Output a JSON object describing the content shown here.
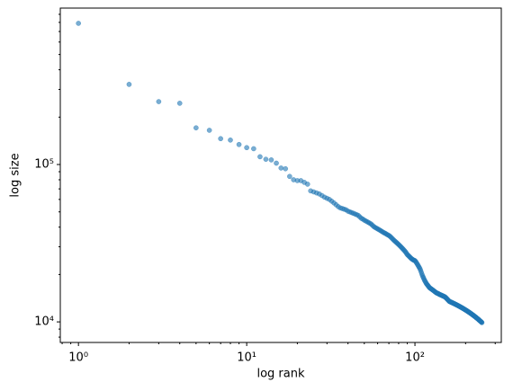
{
  "chart_data": {
    "type": "scatter",
    "xlabel": "log rank",
    "ylabel": "log size",
    "color": "#1f77b4",
    "xscale": "log",
    "yscale": "log",
    "xlim": [
      0.78,
      326
    ],
    "ylim": [
      7400,
      986000
    ],
    "xticks": [
      {
        "value": 1,
        "label": "10⁰"
      },
      {
        "value": 10,
        "label": "10¹"
      },
      {
        "value": 100,
        "label": "10²"
      }
    ],
    "yticks": [
      {
        "value": 10000,
        "label": "10⁴"
      },
      {
        "value": 100000,
        "label": "10⁵"
      }
    ],
    "xminorticks": [
      0.8,
      0.9,
      2,
      3,
      4,
      5,
      6,
      7,
      8,
      9,
      20,
      30,
      40,
      50,
      60,
      70,
      80,
      90,
      200,
      300
    ],
    "yminorticks": [
      8000,
      9000,
      20000,
      30000,
      40000,
      50000,
      60000,
      70000,
      80000,
      90000,
      200000,
      300000,
      400000,
      500000,
      600000,
      700000,
      800000,
      900000
    ],
    "x": [
      1,
      2,
      3,
      4,
      5,
      6,
      7,
      8,
      9,
      10,
      11,
      12,
      13,
      14,
      15,
      16,
      17,
      18,
      19,
      20,
      21,
      22,
      23,
      24,
      25,
      26,
      27,
      28,
      29,
      30,
      31,
      32,
      33,
      34,
      35,
      36,
      37,
      38,
      39,
      40,
      41,
      42,
      43,
      44,
      45,
      46,
      47,
      48,
      49,
      50,
      51,
      52,
      53,
      54,
      55,
      56,
      57,
      58,
      59,
      60,
      61,
      62,
      63,
      64,
      65,
      66,
      67,
      68,
      69,
      70,
      71,
      72,
      73,
      74,
      75,
      76,
      77,
      78,
      79,
      80,
      81,
      82,
      83,
      84,
      85,
      86,
      87,
      88,
      89,
      90,
      91,
      92,
      93,
      94,
      95,
      96,
      97,
      98,
      99,
      100,
      101,
      102,
      103,
      104,
      105,
      106,
      107,
      108,
      109,
      110,
      111,
      112,
      113,
      114,
      115,
      116,
      117,
      118,
      119,
      120,
      121,
      122,
      123,
      124,
      125,
      126,
      127,
      128,
      129,
      130,
      131,
      132,
      133,
      134,
      135,
      136,
      137,
      138,
      139,
      140,
      141,
      142,
      143,
      144,
      145,
      146,
      147,
      148,
      149,
      150,
      151,
      152,
      153,
      154,
      155,
      156,
      157,
      158,
      159,
      160,
      161,
      162,
      163,
      164,
      165,
      166,
      167,
      168,
      169,
      170,
      171,
      172,
      173,
      174,
      175,
      176,
      177,
      178,
      179,
      180,
      181,
      182,
      183,
      184,
      185,
      186,
      187,
      188,
      189,
      190,
      191,
      192,
      193,
      194,
      195,
      196,
      197,
      198,
      199,
      200,
      201,
      202,
      203,
      204,
      205,
      206,
      207,
      208,
      209,
      210,
      211,
      212,
      213,
      214,
      215,
      216,
      217,
      218,
      219,
      220,
      221,
      222,
      223,
      224,
      225,
      226,
      227,
      228,
      229,
      230,
      231,
      232,
      233,
      234,
      235,
      236,
      237,
      238,
      239,
      240,
      241,
      242,
      243,
      244,
      245,
      246,
      247,
      248,
      249,
      250
    ],
    "values": [
      789000,
      323000,
      251000,
      245000,
      171000,
      165000,
      146000,
      143000,
      134000,
      128000,
      126000,
      112000,
      108000,
      107000,
      102000,
      95000,
      94000,
      84000,
      80000,
      79000,
      79000,
      77000,
      75000,
      68000,
      67000,
      66000,
      65000,
      63500,
      62000,
      61000,
      60000,
      58500,
      57000,
      55500,
      54000,
      53000,
      52500,
      52000,
      51500,
      50500,
      50000,
      49500,
      49000,
      48500,
      48000,
      47500,
      46500,
      45500,
      45000,
      44300,
      43800,
      43300,
      42800,
      42300,
      41800,
      41000,
      40300,
      39800,
      39400,
      39000,
      38600,
      38200,
      37800,
      37400,
      37000,
      36700,
      36400,
      36000,
      35700,
      35400,
      35000,
      34500,
      34000,
      33500,
      33000,
      32600,
      32200,
      31800,
      31400,
      31000,
      30600,
      30200,
      29800,
      29400,
      29000,
      28600,
      28200,
      27800,
      27300,
      26800,
      26500,
      26200,
      25900,
      25600,
      25300,
      25100,
      24900,
      24700,
      24600,
      24500,
      24200,
      23800,
      23400,
      23000,
      22600,
      22200,
      21800,
      21300,
      20700,
      20100,
      19600,
      19200,
      18800,
      18400,
      18100,
      17800,
      17500,
      17300,
      17100,
      16900,
      16700,
      16500,
      16400,
      16300,
      16200,
      16100,
      16000,
      15900,
      15800,
      15700,
      15600,
      15500,
      15400,
      15300,
      15250,
      15200,
      15150,
      15100,
      15000,
      14950,
      14900,
      14850,
      14800,
      14750,
      14700,
      14650,
      14600,
      14550,
      14500,
      14450,
      14400,
      14300,
      14200,
      14100,
      14000,
      13900,
      13800,
      13700,
      13600,
      13500,
      13460,
      13420,
      13380,
      13340,
      13300,
      13260,
      13220,
      13180,
      13140,
      13100,
      13060,
      13020,
      12980,
      12940,
      12900,
      12860,
      12820,
      12780,
      12740,
      12700,
      12660,
      12620,
      12580,
      12540,
      12500,
      12460,
      12420,
      12380,
      12340,
      12300,
      12260,
      12220,
      12180,
      12140,
      12100,
      12060,
      12020,
      11980,
      11940,
      11900,
      11860,
      11820,
      11780,
      11740,
      11700,
      11660,
      11620,
      11580,
      11540,
      11500,
      11460,
      11420,
      11380,
      11340,
      11300,
      11260,
      11220,
      11180,
      11140,
      11100,
      11060,
      11020,
      10980,
      10940,
      10900,
      10860,
      10820,
      10780,
      10740,
      10700,
      10660,
      10620,
      10580,
      10540,
      10500,
      10460,
      10420,
      10380,
      10340,
      10300,
      10260,
      10220,
      10180,
      10140,
      10100,
      10060,
      10020,
      9980,
      9940,
      9900
    ]
  }
}
